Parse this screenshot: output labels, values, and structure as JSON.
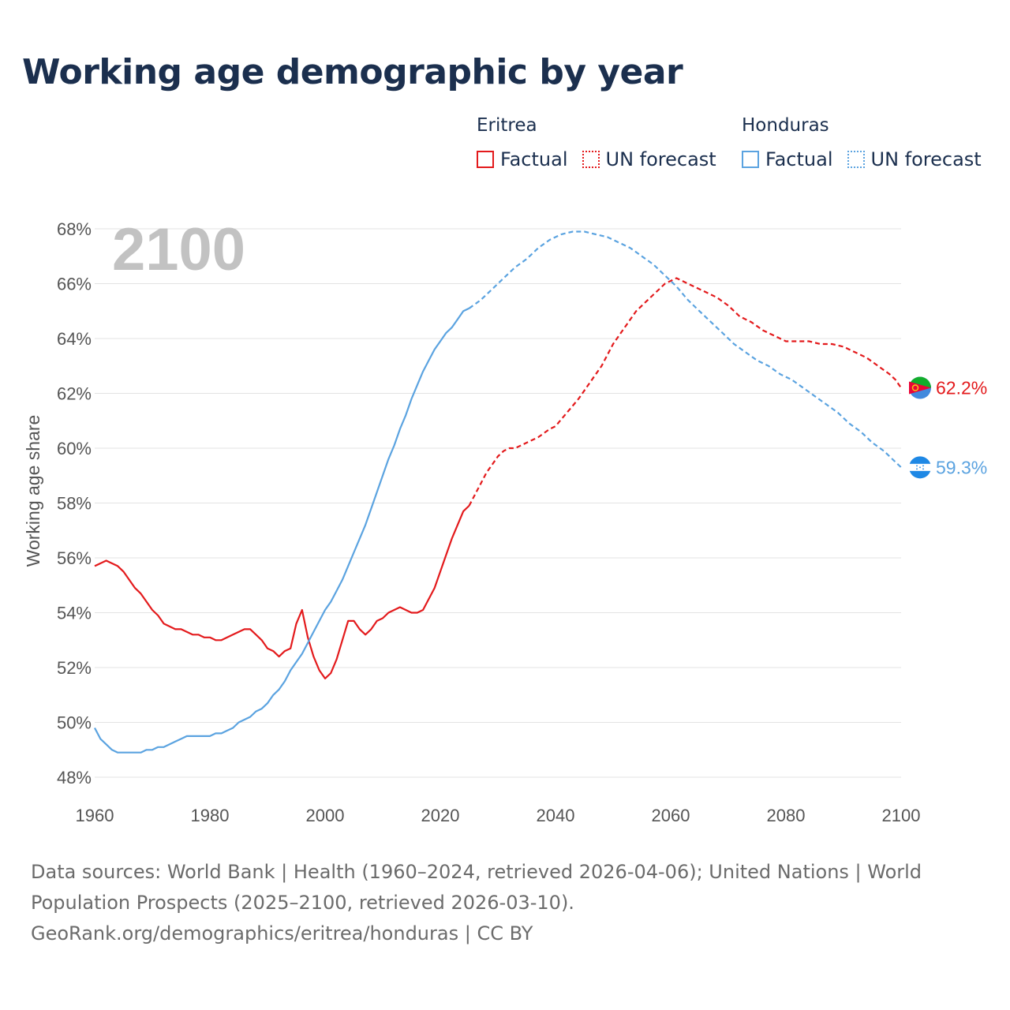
{
  "title": "Working age demographic by year",
  "legend": [
    {
      "country": "Eritrea",
      "color": "#e31a1c",
      "items": [
        {
          "label": "Factual",
          "style": "solid"
        },
        {
          "label": "UN forecast",
          "style": "dotted"
        }
      ]
    },
    {
      "country": "Honduras",
      "color": "#5ba3e0",
      "items": [
        {
          "label": "Factual",
          "style": "solid"
        },
        {
          "label": "UN forecast",
          "style": "dotted"
        }
      ]
    }
  ],
  "year_label": "2100",
  "footer": {
    "line1": "Data sources: World Bank | Health (1960–2024, retrieved 2026-04-06); United Nations | World",
    "line2": "Population Prospects (2025–2100, retrieved 2026-03-10).",
    "line3": "GeoRank.org/demographics/eritrea/honduras | CC BY"
  },
  "chart_data": {
    "type": "line",
    "title": "Working age demographic by year",
    "ylabel": "Working age share",
    "xlabel": "",
    "xlim": [
      1960,
      2100
    ],
    "ylim": [
      48,
      68
    ],
    "x_ticks": [
      1960,
      1980,
      2000,
      2020,
      2040,
      2060,
      2080,
      2100
    ],
    "y_ticks": [
      48,
      50,
      52,
      54,
      56,
      58,
      60,
      62,
      64,
      66,
      68
    ],
    "y_tick_format": "{v}%",
    "grid": true,
    "forecast_start": 2025,
    "series": [
      {
        "name": "Eritrea",
        "color": "#e31a1c",
        "end_label": "62.2%",
        "points": [
          [
            1960,
            55.7
          ],
          [
            1962,
            55.9
          ],
          [
            1964,
            55.7
          ],
          [
            1965,
            55.5
          ],
          [
            1967,
            54.9
          ],
          [
            1968,
            54.7
          ],
          [
            1970,
            54.1
          ],
          [
            1971,
            53.9
          ],
          [
            1972,
            53.6
          ],
          [
            1974,
            53.4
          ],
          [
            1975,
            53.4
          ],
          [
            1977,
            53.2
          ],
          [
            1978,
            53.2
          ],
          [
            1979,
            53.1
          ],
          [
            1980,
            53.1
          ],
          [
            1981,
            53.0
          ],
          [
            1982,
            53.0
          ],
          [
            1984,
            53.2
          ],
          [
            1986,
            53.4
          ],
          [
            1987,
            53.4
          ],
          [
            1988,
            53.2
          ],
          [
            1989,
            53.0
          ],
          [
            1990,
            52.7
          ],
          [
            1991,
            52.6
          ],
          [
            1992,
            52.4
          ],
          [
            1993,
            52.6
          ],
          [
            1994,
            52.7
          ],
          [
            1995,
            53.6
          ],
          [
            1996,
            54.1
          ],
          [
            1997,
            53.1
          ],
          [
            1998,
            52.4
          ],
          [
            1999,
            51.9
          ],
          [
            2000,
            51.6
          ],
          [
            2001,
            51.8
          ],
          [
            2002,
            52.3
          ],
          [
            2003,
            53.0
          ],
          [
            2004,
            53.7
          ],
          [
            2005,
            53.7
          ],
          [
            2006,
            53.4
          ],
          [
            2007,
            53.2
          ],
          [
            2008,
            53.4
          ],
          [
            2009,
            53.7
          ],
          [
            2010,
            53.8
          ],
          [
            2011,
            54.0
          ],
          [
            2012,
            54.1
          ],
          [
            2013,
            54.2
          ],
          [
            2014,
            54.1
          ],
          [
            2015,
            54.0
          ],
          [
            2016,
            54.0
          ],
          [
            2017,
            54.1
          ],
          [
            2018,
            54.5
          ],
          [
            2019,
            54.9
          ],
          [
            2020,
            55.5
          ],
          [
            2021,
            56.1
          ],
          [
            2022,
            56.7
          ],
          [
            2023,
            57.2
          ],
          [
            2024,
            57.7
          ],
          [
            2025,
            57.9
          ],
          [
            2026,
            58.3
          ],
          [
            2027,
            58.7
          ],
          [
            2028,
            59.1
          ],
          [
            2029,
            59.4
          ],
          [
            2030,
            59.7
          ],
          [
            2031,
            59.9
          ],
          [
            2032,
            60.0
          ],
          [
            2033,
            60.0
          ],
          [
            2035,
            60.2
          ],
          [
            2037,
            60.4
          ],
          [
            2039,
            60.7
          ],
          [
            2040,
            60.8
          ],
          [
            2042,
            61.3
          ],
          [
            2044,
            61.8
          ],
          [
            2046,
            62.4
          ],
          [
            2048,
            63.0
          ],
          [
            2050,
            63.8
          ],
          [
            2052,
            64.4
          ],
          [
            2054,
            65.0
          ],
          [
            2056,
            65.4
          ],
          [
            2058,
            65.8
          ],
          [
            2059,
            66.0
          ],
          [
            2060,
            66.1
          ],
          [
            2061,
            66.2
          ],
          [
            2062,
            66.1
          ],
          [
            2064,
            65.9
          ],
          [
            2066,
            65.7
          ],
          [
            2068,
            65.5
          ],
          [
            2070,
            65.2
          ],
          [
            2072,
            64.8
          ],
          [
            2074,
            64.6
          ],
          [
            2076,
            64.3
          ],
          [
            2078,
            64.1
          ],
          [
            2080,
            63.9
          ],
          [
            2082,
            63.9
          ],
          [
            2084,
            63.9
          ],
          [
            2086,
            63.8
          ],
          [
            2088,
            63.8
          ],
          [
            2090,
            63.7
          ],
          [
            2092,
            63.5
          ],
          [
            2094,
            63.3
          ],
          [
            2096,
            63.0
          ],
          [
            2098,
            62.7
          ],
          [
            2099,
            62.5
          ],
          [
            2100,
            62.2
          ]
        ]
      },
      {
        "name": "Honduras",
        "color": "#5ba3e0",
        "end_label": "59.3%",
        "points": [
          [
            1960,
            49.8
          ],
          [
            1961,
            49.4
          ],
          [
            1962,
            49.2
          ],
          [
            1963,
            49.0
          ],
          [
            1964,
            48.9
          ],
          [
            1965,
            48.9
          ],
          [
            1966,
            48.9
          ],
          [
            1967,
            48.9
          ],
          [
            1968,
            48.9
          ],
          [
            1969,
            49.0
          ],
          [
            1970,
            49.0
          ],
          [
            1971,
            49.1
          ],
          [
            1972,
            49.1
          ],
          [
            1973,
            49.2
          ],
          [
            1974,
            49.3
          ],
          [
            1975,
            49.4
          ],
          [
            1976,
            49.5
          ],
          [
            1977,
            49.5
          ],
          [
            1978,
            49.5
          ],
          [
            1979,
            49.5
          ],
          [
            1980,
            49.5
          ],
          [
            1981,
            49.6
          ],
          [
            1982,
            49.6
          ],
          [
            1983,
            49.7
          ],
          [
            1984,
            49.8
          ],
          [
            1985,
            50.0
          ],
          [
            1986,
            50.1
          ],
          [
            1987,
            50.2
          ],
          [
            1988,
            50.4
          ],
          [
            1989,
            50.5
          ],
          [
            1990,
            50.7
          ],
          [
            1991,
            51.0
          ],
          [
            1992,
            51.2
          ],
          [
            1993,
            51.5
          ],
          [
            1994,
            51.9
          ],
          [
            1995,
            52.2
          ],
          [
            1996,
            52.5
          ],
          [
            1997,
            52.9
          ],
          [
            1998,
            53.3
          ],
          [
            1999,
            53.7
          ],
          [
            2000,
            54.1
          ],
          [
            2001,
            54.4
          ],
          [
            2002,
            54.8
          ],
          [
            2003,
            55.2
          ],
          [
            2004,
            55.7
          ],
          [
            2005,
            56.2
          ],
          [
            2006,
            56.7
          ],
          [
            2007,
            57.2
          ],
          [
            2008,
            57.8
          ],
          [
            2009,
            58.4
          ],
          [
            2010,
            59.0
          ],
          [
            2011,
            59.6
          ],
          [
            2012,
            60.1
          ],
          [
            2013,
            60.7
          ],
          [
            2014,
            61.2
          ],
          [
            2015,
            61.8
          ],
          [
            2016,
            62.3
          ],
          [
            2017,
            62.8
          ],
          [
            2018,
            63.2
          ],
          [
            2019,
            63.6
          ],
          [
            2020,
            63.9
          ],
          [
            2021,
            64.2
          ],
          [
            2022,
            64.4
          ],
          [
            2023,
            64.7
          ],
          [
            2024,
            65.0
          ],
          [
            2025,
            65.1
          ],
          [
            2027,
            65.4
          ],
          [
            2029,
            65.8
          ],
          [
            2031,
            66.2
          ],
          [
            2033,
            66.6
          ],
          [
            2035,
            66.9
          ],
          [
            2037,
            67.3
          ],
          [
            2039,
            67.6
          ],
          [
            2041,
            67.8
          ],
          [
            2043,
            67.9
          ],
          [
            2045,
            67.9
          ],
          [
            2047,
            67.8
          ],
          [
            2049,
            67.7
          ],
          [
            2051,
            67.5
          ],
          [
            2053,
            67.3
          ],
          [
            2055,
            67.0
          ],
          [
            2057,
            66.7
          ],
          [
            2059,
            66.3
          ],
          [
            2061,
            65.9
          ],
          [
            2063,
            65.4
          ],
          [
            2065,
            65.0
          ],
          [
            2067,
            64.6
          ],
          [
            2069,
            64.2
          ],
          [
            2071,
            63.8
          ],
          [
            2073,
            63.5
          ],
          [
            2075,
            63.2
          ],
          [
            2077,
            63.0
          ],
          [
            2079,
            62.7
          ],
          [
            2081,
            62.5
          ],
          [
            2083,
            62.2
          ],
          [
            2085,
            61.9
          ],
          [
            2087,
            61.6
          ],
          [
            2089,
            61.3
          ],
          [
            2091,
            60.9
          ],
          [
            2093,
            60.6
          ],
          [
            2095,
            60.2
          ],
          [
            2097,
            59.9
          ],
          [
            2099,
            59.5
          ],
          [
            2100,
            59.3
          ]
        ]
      }
    ]
  }
}
